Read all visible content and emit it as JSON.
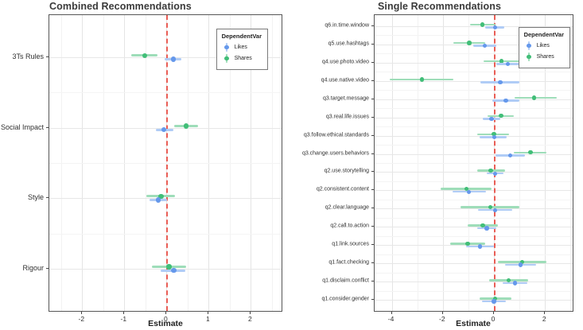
{
  "chart_data": [
    {
      "type": "pointrange",
      "title": "Combined Recommendations",
      "xlabel": "Estimate",
      "xlim": [
        -2.78,
        2.73
      ],
      "xticks": [
        -2,
        -1,
        0,
        1,
        2
      ],
      "x_minor_step": 0.5,
      "vline_x": 0,
      "vline_color": "#e8392f",
      "grid": true,
      "legend": {
        "title": "DependentVar",
        "position": "top-right",
        "items": [
          {
            "label": "Likes"
          },
          {
            "label": "Shares"
          }
        ]
      },
      "categories": [
        "3Ts Rules",
        "Social Impact",
        "Style",
        "Rigour"
      ],
      "series": [
        {
          "name": "Shares",
          "point_color": "#41be78",
          "band_color": "#9eddb9",
          "values": [
            {
              "est": -0.52,
              "lo": -0.84,
              "hi": -0.21
            },
            {
              "est": 0.47,
              "lo": 0.19,
              "hi": 0.74
            },
            {
              "est": -0.13,
              "lo": -0.48,
              "hi": 0.21
            },
            {
              "est": 0.06,
              "lo": -0.35,
              "hi": 0.47
            }
          ]
        },
        {
          "name": "Likes",
          "point_color": "#6598eb",
          "band_color": "#b0ccf6",
          "values": [
            {
              "est": 0.16,
              "lo": -0.04,
              "hi": 0.36
            },
            {
              "est": -0.06,
              "lo": -0.26,
              "hi": 0.16
            },
            {
              "est": -0.2,
              "lo": -0.41,
              "hi": 0.01
            },
            {
              "est": 0.17,
              "lo": -0.13,
              "hi": 0.44
            }
          ]
        }
      ]
    },
    {
      "type": "pointrange",
      "title": "Single Recommendations",
      "xlabel": "Estimate",
      "xlim": [
        -4.67,
        3.08
      ],
      "xticks": [
        -4,
        -2,
        0,
        2
      ],
      "x_minor_step": 1,
      "vline_x": 0,
      "vline_color": "#e8392f",
      "grid": true,
      "legend": {
        "title": "DependentVar",
        "position": "top-right",
        "items": [
          {
            "label": "Likes"
          },
          {
            "label": "Shares"
          }
        ]
      },
      "categories": [
        "q6.in.time.window",
        "q5.use.hashtags",
        "q4.use.photo.video",
        "q4.use.native.video",
        "q3.target.message",
        "q3.real.life.issues",
        "q3.follow.ethical.standards",
        "q3.change.users.behaviors",
        "q2.use.storytelling",
        "q2.consistent.content",
        "q2.clear.language",
        "q2.call.to.action",
        "q1.link.sources",
        "q1.fact.checking",
        "q1.disclaim.conflict",
        "q1.consider.gender"
      ],
      "series": [
        {
          "name": "Shares",
          "point_color": "#41be78",
          "band_color": "#9eddb9",
          "values": [
            {
              "est": -0.45,
              "lo": -0.92,
              "hi": 0.05
            },
            {
              "est": -0.97,
              "lo": -1.58,
              "hi": -0.35
            },
            {
              "est": 0.3,
              "lo": -0.42,
              "hi": 1.02
            },
            {
              "est": -2.82,
              "lo": -4.08,
              "hi": -1.58
            },
            {
              "est": 1.57,
              "lo": 0.8,
              "hi": 2.45
            },
            {
              "est": 0.28,
              "lo": -0.25,
              "hi": 0.78
            },
            {
              "est": 0.0,
              "lo": -0.65,
              "hi": 0.6
            },
            {
              "est": 1.43,
              "lo": 0.79,
              "hi": 2.06
            },
            {
              "est": -0.13,
              "lo": -0.67,
              "hi": 0.42
            },
            {
              "est": -1.08,
              "lo": -2.08,
              "hi": -0.08
            },
            {
              "est": -0.15,
              "lo": -1.3,
              "hi": 1.0
            },
            {
              "est": -0.44,
              "lo": -1.02,
              "hi": 0.15
            },
            {
              "est": -1.03,
              "lo": -1.72,
              "hi": -0.35
            },
            {
              "est": 1.1,
              "lo": 0.14,
              "hi": 2.04
            },
            {
              "est": 0.57,
              "lo": -0.2,
              "hi": 1.35
            },
            {
              "est": 0.05,
              "lo": -0.55,
              "hi": 0.68
            }
          ]
        },
        {
          "name": "Likes",
          "point_color": "#6598eb",
          "band_color": "#b0ccf6",
          "values": [
            {
              "est": 0.04,
              "lo": -0.33,
              "hi": 0.4
            },
            {
              "est": -0.35,
              "lo": -0.8,
              "hi": 0.1
            },
            {
              "est": 0.55,
              "lo": 0.1,
              "hi": 1.0
            },
            {
              "est": 0.25,
              "lo": -0.52,
              "hi": 0.98
            },
            {
              "est": 0.47,
              "lo": -0.06,
              "hi": 0.99
            },
            {
              "est": -0.1,
              "lo": -0.44,
              "hi": 0.25
            },
            {
              "est": 0.02,
              "lo": -0.55,
              "hi": 0.5
            },
            {
              "est": 0.64,
              "lo": 0.07,
              "hi": 1.2
            },
            {
              "est": 0.05,
              "lo": -0.29,
              "hi": 0.38
            },
            {
              "est": -0.98,
              "lo": -1.63,
              "hi": -0.32
            },
            {
              "est": 0.05,
              "lo": -0.63,
              "hi": 0.7
            },
            {
              "est": -0.28,
              "lo": -0.65,
              "hi": 0.08
            },
            {
              "est": -0.55,
              "lo": -1.1,
              "hi": 0.01
            },
            {
              "est": 1.05,
              "lo": 0.44,
              "hi": 1.64
            },
            {
              "est": 0.82,
              "lo": 0.33,
              "hi": 1.31
            },
            {
              "est": 0.0,
              "lo": -0.46,
              "hi": 0.46
            }
          ]
        }
      ]
    }
  ]
}
